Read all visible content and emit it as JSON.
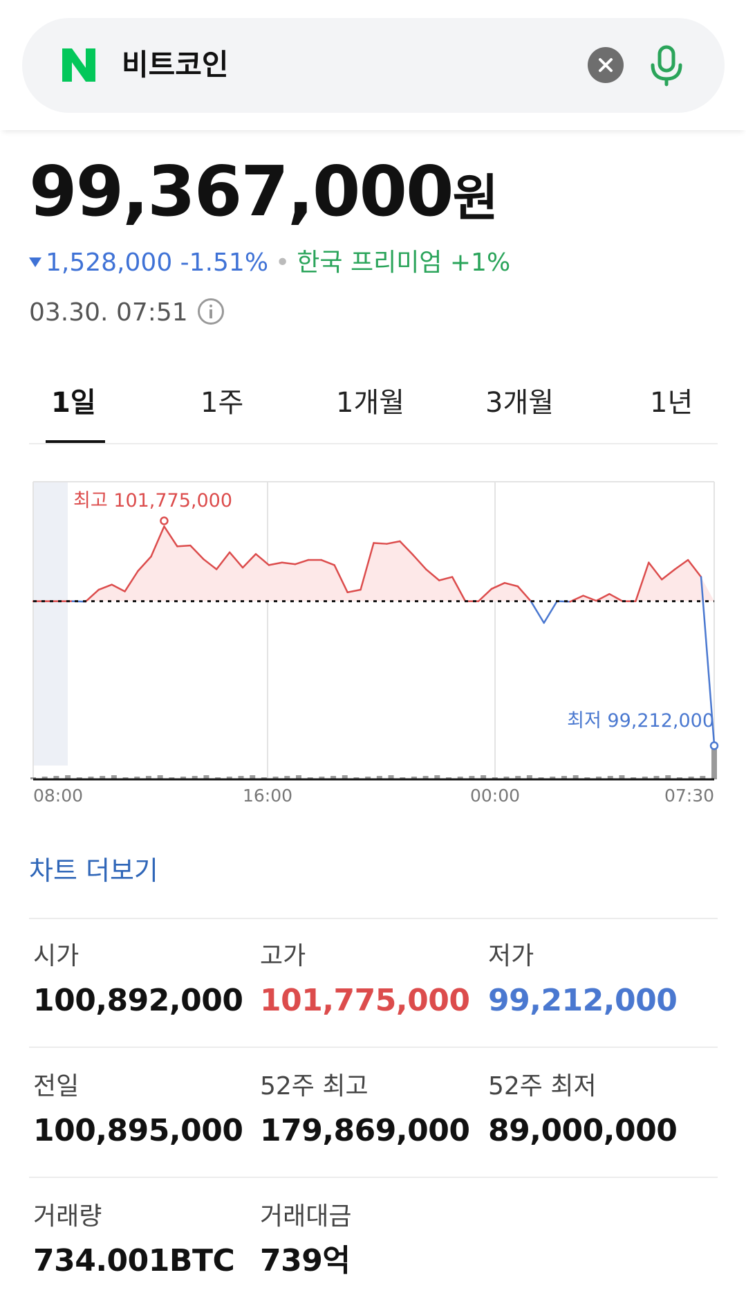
{
  "search": {
    "query": "비트코인",
    "logo_letter": "N",
    "clear_icon": "close-icon",
    "mic_icon": "microphone-icon"
  },
  "price": {
    "value": "99,367,000",
    "unit": "원",
    "change_amount": "1,528,000",
    "change_percent": "-1.51%",
    "premium_label": "한국 프리미엄",
    "premium_value": "+1%",
    "timestamp": "03.30. 07:51"
  },
  "tabs": [
    {
      "label": "1일",
      "active": true
    },
    {
      "label": "1주",
      "active": false
    },
    {
      "label": "1개월",
      "active": false
    },
    {
      "label": "3개월",
      "active": false
    },
    {
      "label": "1년",
      "active": false
    }
  ],
  "chart_data": {
    "type": "line",
    "x_ticks": [
      "08:00",
      "16:00",
      "00:00",
      "07:30"
    ],
    "baseline": 100895000,
    "ylim": [
      98800000,
      102300000
    ],
    "high_label": "최고 101,775,000",
    "low_label": "최저 99,212,000",
    "values": [
      100895000,
      100895000,
      100895000,
      100895000,
      100890000,
      101030000,
      101090000,
      101010000,
      101250000,
      101420000,
      101775000,
      101540000,
      101550000,
      101390000,
      101270000,
      101470000,
      101290000,
      101450000,
      101320000,
      101350000,
      101330000,
      101380000,
      101380000,
      101320000,
      101000000,
      101030000,
      101580000,
      101570000,
      101600000,
      101440000,
      101270000,
      101140000,
      101180000,
      100895000,
      100895000,
      101040000,
      101110000,
      101070000,
      100895000,
      100640000,
      100895000,
      100890000,
      100960000,
      100900000,
      100980000,
      100895000,
      100895000,
      101350000,
      101150000,
      101270000,
      101380000,
      101180000,
      99212000
    ],
    "colors": {
      "up": "#dc4c4c",
      "down": "#4a78d0",
      "fill": "#fde8e8"
    }
  },
  "more_chart_label": "차트 더보기",
  "stats": [
    {
      "label": "시가",
      "value": "100,892,000",
      "color": "default"
    },
    {
      "label": "고가",
      "value": "101,775,000",
      "color": "red"
    },
    {
      "label": "저가",
      "value": "99,212,000",
      "color": "blue"
    },
    {
      "label": "전일",
      "value": "100,895,000",
      "color": "default"
    },
    {
      "label": "52주 최고",
      "value": "179,869,000",
      "color": "default"
    },
    {
      "label": "52주 최저",
      "value": "89,000,000",
      "color": "default"
    },
    {
      "label": "거래량",
      "value": "734.001BTC",
      "color": "default"
    },
    {
      "label": "거래대금",
      "value": "739억",
      "color": "default"
    }
  ]
}
